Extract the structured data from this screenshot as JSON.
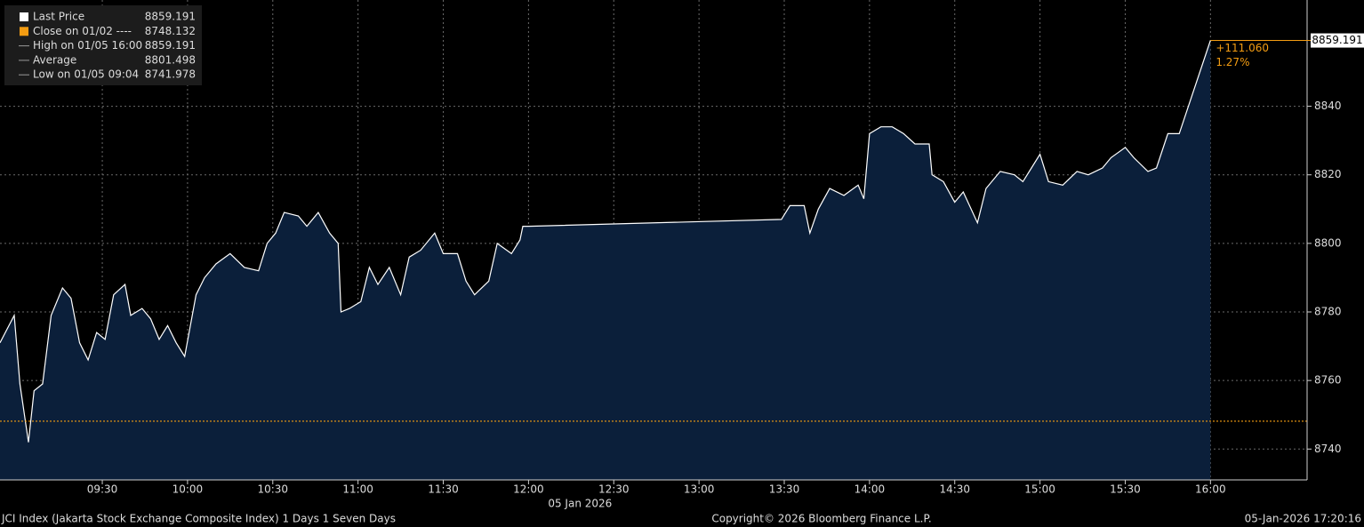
{
  "chart_data": {
    "type": "area",
    "x": [
      "08:54",
      "08:59",
      "09:01",
      "09:04",
      "09:06",
      "09:09",
      "09:12",
      "09:16",
      "09:19",
      "09:22",
      "09:25",
      "09:28",
      "09:31",
      "09:34",
      "09:38",
      "09:40",
      "09:44",
      "09:47",
      "09:50",
      "09:53",
      "09:56",
      "09:59",
      "10:03",
      "10:06",
      "10:10",
      "10:15",
      "10:20",
      "10:25",
      "10:28",
      "10:31",
      "10:34",
      "10:39",
      "10:42",
      "10:46",
      "10:50",
      "10:53",
      "10:54",
      "10:57",
      "11:01",
      "11:04",
      "11:07",
      "11:11",
      "11:15",
      "11:18",
      "11:22",
      "11:27",
      "11:30",
      "11:35",
      "11:38",
      "11:41",
      "11:46",
      "11:49",
      "11:54",
      "11:57",
      "11:58",
      "12:00",
      "13:29",
      "13:32",
      "13:37",
      "13:39",
      "13:42",
      "13:46",
      "13:51",
      "13:56",
      "13:58",
      "14:00",
      "14:04",
      "14:08",
      "14:12",
      "14:16",
      "14:21",
      "14:22",
      "14:26",
      "14:30",
      "14:33",
      "14:38",
      "14:41",
      "14:46",
      "14:51",
      "14:54",
      "14:57",
      "15:00",
      "15:03",
      "15:08",
      "15:13",
      "15:17",
      "15:22",
      "15:25",
      "15:30",
      "15:33",
      "15:38",
      "15:41",
      "15:45",
      "15:49",
      "16:00"
    ],
    "series": [
      {
        "name": "Last Price",
        "color": "#ffffff",
        "fill": "#0b1f3a",
        "values": [
          8771,
          8779,
          8759,
          8741.978,
          8757,
          8759,
          8779,
          8787,
          8784,
          8771,
          8766,
          8774,
          8772,
          8785,
          8788,
          8779,
          8781,
          8778,
          8772,
          8776,
          8771,
          8767,
          8785,
          8790,
          8794,
          8797,
          8793,
          8792,
          8800,
          8803,
          8809,
          8808,
          8805,
          8809,
          8803,
          8800,
          8780,
          8781,
          8783,
          8793,
          8788,
          8793,
          8785,
          8796,
          8798,
          8803,
          8797,
          8797,
          8789,
          8785,
          8789,
          8800,
          8797,
          8801,
          8805,
          8805,
          8807,
          8811,
          8811,
          8803,
          8810,
          8816,
          8814,
          8817,
          8813,
          8832,
          8834,
          8834,
          8832,
          8829,
          8829,
          8820,
          8818,
          8812,
          8815,
          8806,
          8816,
          8821,
          8820,
          8818,
          8822,
          8826,
          8818,
          8817,
          8821,
          8820,
          8822,
          8825,
          8828,
          8825,
          8821,
          8822,
          8832,
          8832,
          8859.191
        ]
      }
    ],
    "close_line": {
      "value": 8748.132,
      "color": "#f39c12"
    },
    "legend": [
      {
        "name": "Last Price",
        "value": 8859.191
      },
      {
        "name": "Close on 01/02 ----",
        "value": 8748.132
      },
      {
        "name": "High on 01/05 16:00",
        "value": 8859.191
      },
      {
        "name": "Average",
        "value": 8801.498
      },
      {
        "name": "Low on 01/05 09:04",
        "value": 8741.978
      }
    ],
    "last_price_tag": 8859.191,
    "change": "+111.060",
    "change_pct": "1.27%",
    "xlim": [
      "08:54",
      "16:34"
    ],
    "xticks": [
      "09:30",
      "10:00",
      "10:30",
      "11:00",
      "11:30",
      "12:00",
      "12:30",
      "13:00",
      "13:30",
      "14:00",
      "14:30",
      "15:00",
      "15:30",
      "16:00"
    ],
    "date_label": "05 Jan 2026",
    "ylim": [
      8731,
      8871
    ],
    "yticks": [
      8740,
      8760,
      8780,
      8800,
      8820,
      8840
    ],
    "grid": true,
    "footer": {
      "left": "JCI Index (Jakarta Stock Exchange Composite Index) 1 Days 1 Seven Days",
      "center": "Copyright© 2026 Bloomberg Finance L.P.",
      "right": "05-Jan-2026 17:20:16"
    }
  }
}
